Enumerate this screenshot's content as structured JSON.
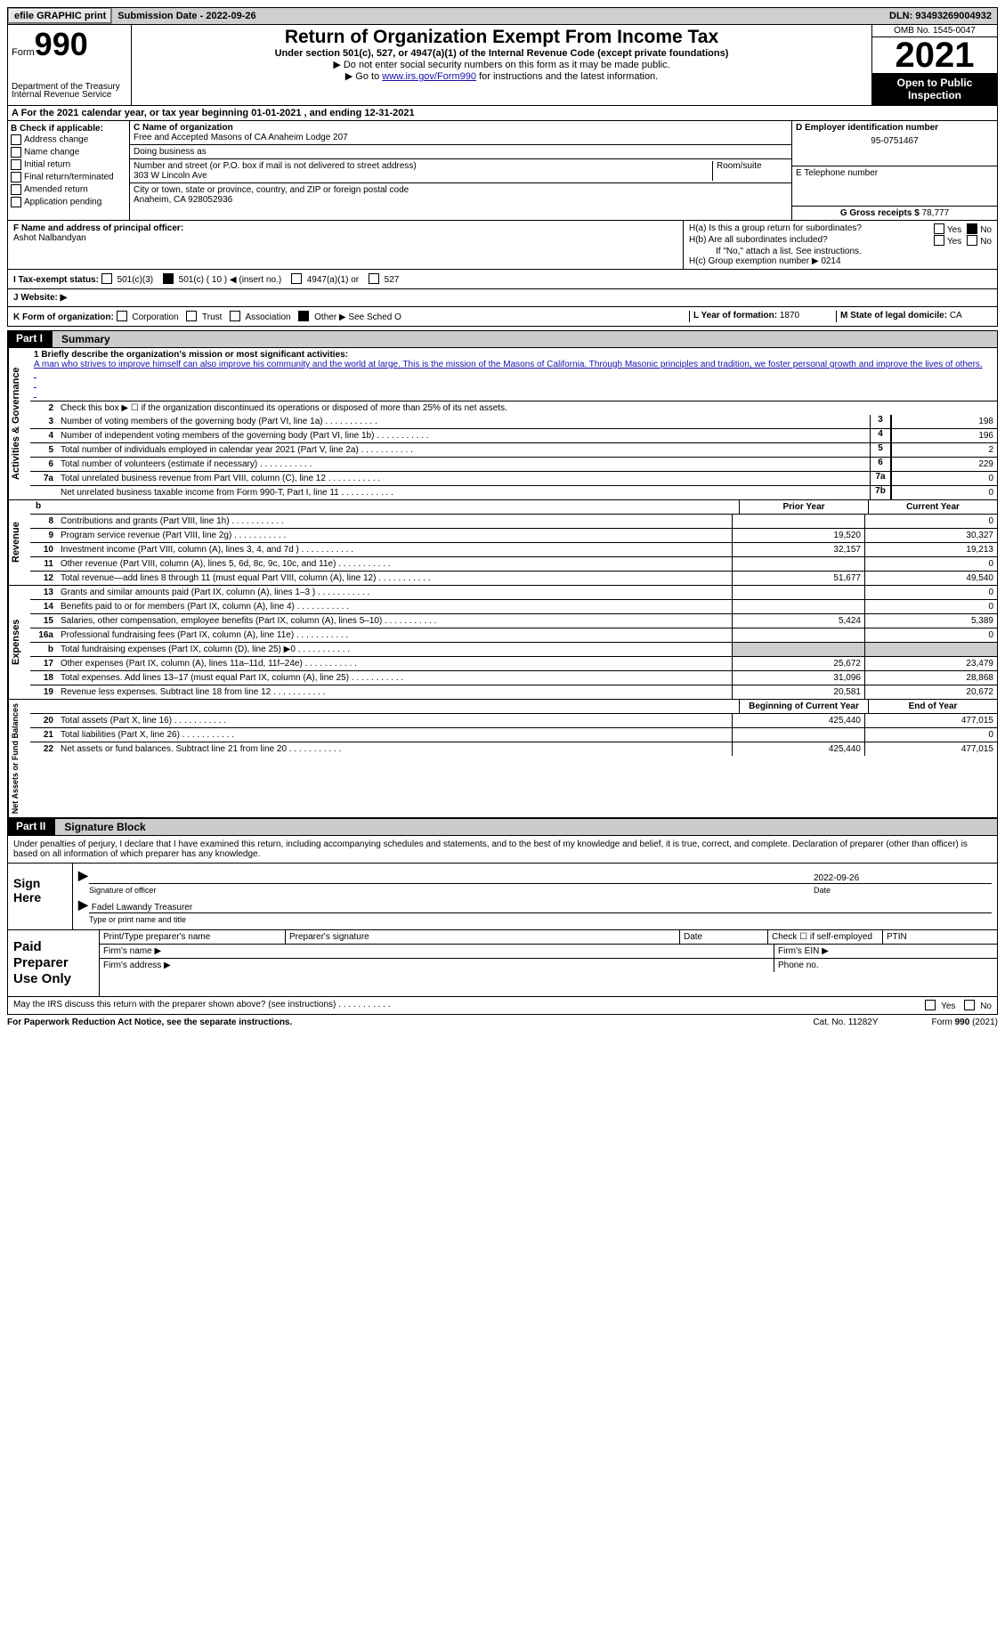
{
  "topbar": {
    "efile": "efile GRAPHIC print",
    "sub_label": "Submission Date - ",
    "sub_date": "2022-09-26",
    "dln_label": "DLN: ",
    "dln": "93493269004932"
  },
  "header": {
    "form_prefix": "Form",
    "form_no": "990",
    "title": "Return of Organization Exempt From Income Tax",
    "sub": "Under section 501(c), 527, or 4947(a)(1) of the Internal Revenue Code (except private foundations)",
    "note1": "▶ Do not enter social security numbers on this form as it may be made public.",
    "note2_a": "▶ Go to ",
    "note2_link": "www.irs.gov/Form990",
    "note2_b": " for instructions and the latest information.",
    "dept": "Department of the Treasury",
    "irs": "Internal Revenue Service",
    "omb": "OMB No. 1545-0047",
    "year": "2021",
    "open": "Open to Public Inspection"
  },
  "a_line": "A For the 2021 calendar year, or tax year beginning 01-01-2021   , and ending 12-31-2021",
  "b": {
    "hdr": "B Check if applicable:",
    "items": [
      "Address change",
      "Name change",
      "Initial return",
      "Final return/terminated",
      "Amended return",
      "Application pending"
    ]
  },
  "c": {
    "name_lbl": "C Name of organization",
    "name": "Free and Accepted Masons of CA Anaheim Lodge 207",
    "dba_lbl": "Doing business as",
    "dba": "",
    "street_lbl": "Number and street (or P.O. box if mail is not delivered to street address)",
    "room_lbl": "Room/suite",
    "street": "303 W Lincoln Ave",
    "city_lbl": "City or town, state or province, country, and ZIP or foreign postal code",
    "city": "Anaheim, CA  928052936"
  },
  "d": {
    "ein_lbl": "D Employer identification number",
    "ein": "95-0751467",
    "tel_lbl": "E Telephone number",
    "tel": "",
    "gr_lbl": "G Gross receipts $ ",
    "gr": "78,777"
  },
  "f": {
    "lbl": "F Name and address of principal officer:",
    "name": "Ashot Nalbandyan"
  },
  "h": {
    "a": "H(a)  Is this a group return for subordinates?",
    "b": "H(b)  Are all subordinates included?",
    "b_note": "If \"No,\" attach a list. See instructions.",
    "c_lbl": "H(c)  Group exemption number ▶  ",
    "c_val": "0214",
    "yes": "Yes",
    "no": "No"
  },
  "i": {
    "lbl": "I   Tax-exempt status:",
    "c3": "501(c)(3)",
    "c": "501(c) ( 10 ) ◀ (insert no.)",
    "a1": "4947(a)(1) or",
    "s527": "527"
  },
  "j": {
    "lbl": "J   Website: ▶"
  },
  "k": {
    "lbl": "K Form of organization:",
    "corp": "Corporation",
    "trust": "Trust",
    "assoc": "Association",
    "other": "Other ▶ See Sched O",
    "l_lbl": "L Year of formation: ",
    "l_val": "1870",
    "m_lbl": "M State of legal domicile: ",
    "m_val": "CA"
  },
  "parts": {
    "p1_tag": "Part I",
    "p1_title": "Summary",
    "p2_tag": "Part II",
    "p2_title": "Signature Block"
  },
  "mission": {
    "lbl": "1  Briefly describe the organization's mission or most significant activities:",
    "text": "A man who strives to improve himself can also improve his community and the world at large. This is the mission of the Masons of California. Through Masonic principles and tradition, we foster personal growth and improve the lives of others."
  },
  "line2": "Check this box ▶ ☐ if the organization discontinued its operations or disposed of more than 25% of its net assets.",
  "vlabels": {
    "ag": "Activities & Governance",
    "rev": "Revenue",
    "exp": "Expenses",
    "na": "Net Assets or Fund Balances"
  },
  "summary_rows": [
    {
      "n": "3",
      "t": "Number of voting members of the governing body (Part VI, line 1a)",
      "box": "3",
      "v": "198"
    },
    {
      "n": "4",
      "t": "Number of independent voting members of the governing body (Part VI, line 1b)",
      "box": "4",
      "v": "196"
    },
    {
      "n": "5",
      "t": "Total number of individuals employed in calendar year 2021 (Part V, line 2a)",
      "box": "5",
      "v": "2"
    },
    {
      "n": "6",
      "t": "Total number of volunteers (estimate if necessary)",
      "box": "6",
      "v": "229"
    },
    {
      "n": "7a",
      "t": "Total unrelated business revenue from Part VIII, column (C), line 12",
      "box": "7a",
      "v": "0"
    },
    {
      "n": "",
      "t": "Net unrelated business taxable income from Form 990-T, Part I, line 11",
      "box": "7b",
      "v": "0"
    }
  ],
  "col_hdr": {
    "prior": "Prior Year",
    "curr": "Current Year",
    "boy": "Beginning of Current Year",
    "eoy": "End of Year"
  },
  "revenue_rows": [
    {
      "n": "8",
      "t": "Contributions and grants (Part VIII, line 1h)",
      "p": "",
      "c": "0"
    },
    {
      "n": "9",
      "t": "Program service revenue (Part VIII, line 2g)",
      "p": "19,520",
      "c": "30,327"
    },
    {
      "n": "10",
      "t": "Investment income (Part VIII, column (A), lines 3, 4, and 7d )",
      "p": "32,157",
      "c": "19,213"
    },
    {
      "n": "11",
      "t": "Other revenue (Part VIII, column (A), lines 5, 6d, 8c, 9c, 10c, and 11e)",
      "p": "",
      "c": "0"
    },
    {
      "n": "12",
      "t": "Total revenue—add lines 8 through 11 (must equal Part VIII, column (A), line 12)",
      "p": "51,677",
      "c": "49,540"
    }
  ],
  "expense_rows": [
    {
      "n": "13",
      "t": "Grants and similar amounts paid (Part IX, column (A), lines 1–3 )",
      "p": "",
      "c": "0"
    },
    {
      "n": "14",
      "t": "Benefits paid to or for members (Part IX, column (A), line 4)",
      "p": "",
      "c": "0"
    },
    {
      "n": "15",
      "t": "Salaries, other compensation, employee benefits (Part IX, column (A), lines 5–10)",
      "p": "5,424",
      "c": "5,389"
    },
    {
      "n": "16a",
      "t": "Professional fundraising fees (Part IX, column (A), line 11e)",
      "p": "",
      "c": "0"
    },
    {
      "n": "b",
      "t": "Total fundraising expenses (Part IX, column (D), line 25) ▶0",
      "p": "shade",
      "c": "shade"
    },
    {
      "n": "17",
      "t": "Other expenses (Part IX, column (A), lines 11a–11d, 11f–24e)",
      "p": "25,672",
      "c": "23,479"
    },
    {
      "n": "18",
      "t": "Total expenses. Add lines 13–17 (must equal Part IX, column (A), line 25)",
      "p": "31,096",
      "c": "28,868"
    },
    {
      "n": "19",
      "t": "Revenue less expenses. Subtract line 18 from line 12",
      "p": "20,581",
      "c": "20,672"
    }
  ],
  "na_rows": [
    {
      "n": "20",
      "t": "Total assets (Part X, line 16)",
      "p": "425,440",
      "c": "477,015"
    },
    {
      "n": "21",
      "t": "Total liabilities (Part X, line 26)",
      "p": "",
      "c": "0"
    },
    {
      "n": "22",
      "t": "Net assets or fund balances. Subtract line 21 from line 20",
      "p": "425,440",
      "c": "477,015"
    }
  ],
  "sig": {
    "penalties": "Under penalties of perjury, I declare that I have examined this return, including accompanying schedules and statements, and to the best of my knowledge and belief, it is true, correct, and complete. Declaration of preparer (other than officer) is based on all information of which preparer has any knowledge.",
    "sign_here": "Sign Here",
    "sig_officer": "Signature of officer",
    "date": "Date",
    "date_val": "2022-09-26",
    "type_name": "Type or print name and title",
    "officer_name": "Fadel Lawandy  Treasurer",
    "paid": "Paid Preparer Use Only",
    "pt_name": "Print/Type preparer's name",
    "pt_sig": "Preparer's signature",
    "pt_date": "Date",
    "self_emp": "Check ☐ if self-employed",
    "ptin": "PTIN",
    "firm_name": "Firm's name  ▶",
    "firm_ein": "Firm's EIN ▶",
    "firm_addr": "Firm's address ▶",
    "phone": "Phone no."
  },
  "irs_discuss": "May the IRS discuss this return with the preparer shown above? (see instructions)",
  "foot": {
    "pra": "For Paperwork Reduction Act Notice, see the separate instructions.",
    "cat": "Cat. No. 11282Y",
    "form": "Form 990 (2021)"
  }
}
